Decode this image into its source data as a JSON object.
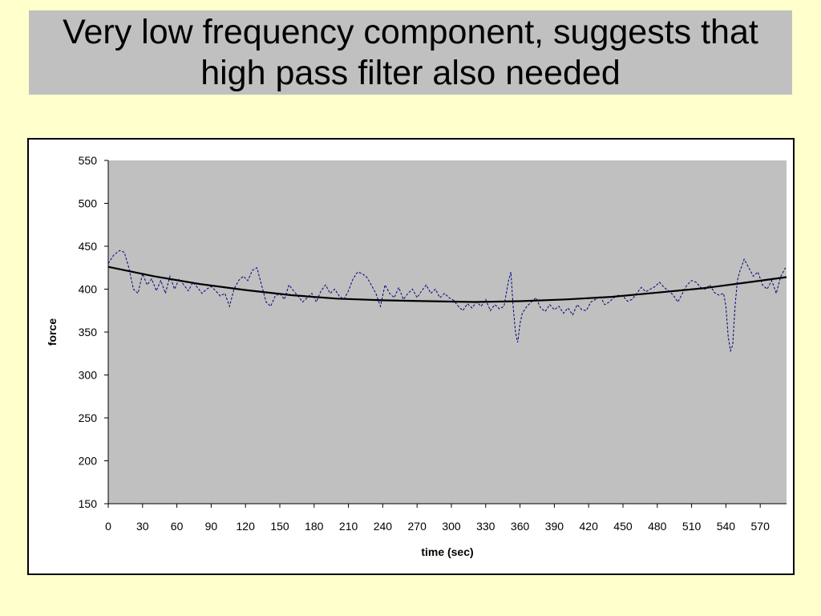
{
  "slide": {
    "title": "Very low frequency component, suggests that\nhigh pass filter also needed"
  },
  "colors": {
    "background": "#ffffcc",
    "title_box": "#c0c0c0",
    "plot_area": "#c0c0c0",
    "raw_series": "#000080",
    "trend_series": "#000000"
  },
  "chart_data": {
    "type": "line",
    "title": "",
    "xlabel": "time (sec)",
    "ylabel": "force",
    "xlim": [
      0,
      593
    ],
    "ylim": [
      150,
      550
    ],
    "grid": false,
    "legend": "none",
    "x_ticks": [
      0,
      30,
      60,
      90,
      120,
      150,
      180,
      210,
      240,
      270,
      300,
      330,
      360,
      390,
      420,
      450,
      480,
      510,
      540,
      570
    ],
    "y_ticks": [
      150,
      200,
      250,
      300,
      350,
      400,
      450,
      500,
      550
    ],
    "series": [
      {
        "style": "dashed-noisy",
        "x": [
          0,
          5,
          10,
          14,
          18,
          22,
          26,
          30,
          34,
          38,
          42,
          46,
          50,
          54,
          58,
          62,
          66,
          70,
          74,
          78,
          82,
          86,
          90,
          94,
          98,
          102,
          106,
          110,
          114,
          118,
          122,
          126,
          130,
          134,
          138,
          142,
          146,
          150,
          154,
          158,
          162,
          166,
          170,
          174,
          178,
          182,
          186,
          190,
          194,
          198,
          202,
          206,
          210,
          214,
          218,
          222,
          226,
          230,
          234,
          238,
          242,
          246,
          250,
          254,
          258,
          262,
          266,
          270,
          274,
          278,
          282,
          286,
          290,
          294,
          298,
          302,
          306,
          310,
          314,
          318,
          322,
          326,
          330,
          334,
          338,
          342,
          346,
          350,
          352,
          354,
          356,
          358,
          360,
          362,
          366,
          370,
          374,
          378,
          382,
          386,
          390,
          394,
          398,
          402,
          406,
          410,
          414,
          418,
          422,
          426,
          430,
          434,
          438,
          442,
          446,
          450,
          454,
          458,
          462,
          466,
          470,
          474,
          478,
          482,
          486,
          490,
          494,
          498,
          502,
          506,
          510,
          514,
          518,
          522,
          526,
          530,
          534,
          538,
          540,
          542,
          544,
          546,
          548,
          550,
          552,
          556,
          560,
          564,
          568,
          572,
          576,
          580,
          584,
          588,
          592
        ],
        "y": [
          430,
          440,
          445,
          443,
          425,
          400,
          395,
          418,
          405,
          412,
          398,
          410,
          395,
          415,
          400,
          412,
          405,
          398,
          408,
          402,
          395,
          400,
          403,
          398,
          392,
          395,
          380,
          400,
          410,
          415,
          410,
          422,
          425,
          405,
          385,
          380,
          392,
          395,
          388,
          405,
          398,
          392,
          385,
          390,
          395,
          385,
          398,
          405,
          395,
          400,
          392,
          388,
          398,
          412,
          420,
          418,
          414,
          405,
          395,
          380,
          405,
          395,
          390,
          402,
          388,
          395,
          400,
          390,
          398,
          405,
          395,
          400,
          390,
          395,
          390,
          387,
          380,
          375,
          383,
          378,
          385,
          380,
          388,
          375,
          382,
          377,
          380,
          410,
          420,
          380,
          350,
          338,
          360,
          372,
          380,
          385,
          390,
          378,
          374,
          382,
          376,
          380,
          372,
          378,
          370,
          382,
          376,
          375,
          385,
          388,
          392,
          382,
          385,
          390,
          393,
          392,
          386,
          388,
          395,
          402,
          397,
          400,
          403,
          408,
          402,
          398,
          393,
          385,
          395,
          405,
          410,
          408,
          402,
          400,
          405,
          396,
          393,
          395,
          380,
          345,
          328,
          335,
          380,
          410,
          420,
          435,
          425,
          415,
          420,
          405,
          400,
          410,
          395,
          415,
          425
        ]
      },
      {
        "style": "solid-trend",
        "x": [
          0,
          40,
          80,
          120,
          160,
          200,
          240,
          280,
          320,
          360,
          400,
          440,
          480,
          520,
          560,
          593
        ],
        "y": [
          426,
          415,
          406,
          399,
          393,
          389,
          387,
          386,
          385,
          386,
          388,
          391,
          396,
          401,
          408,
          414
        ]
      }
    ]
  }
}
